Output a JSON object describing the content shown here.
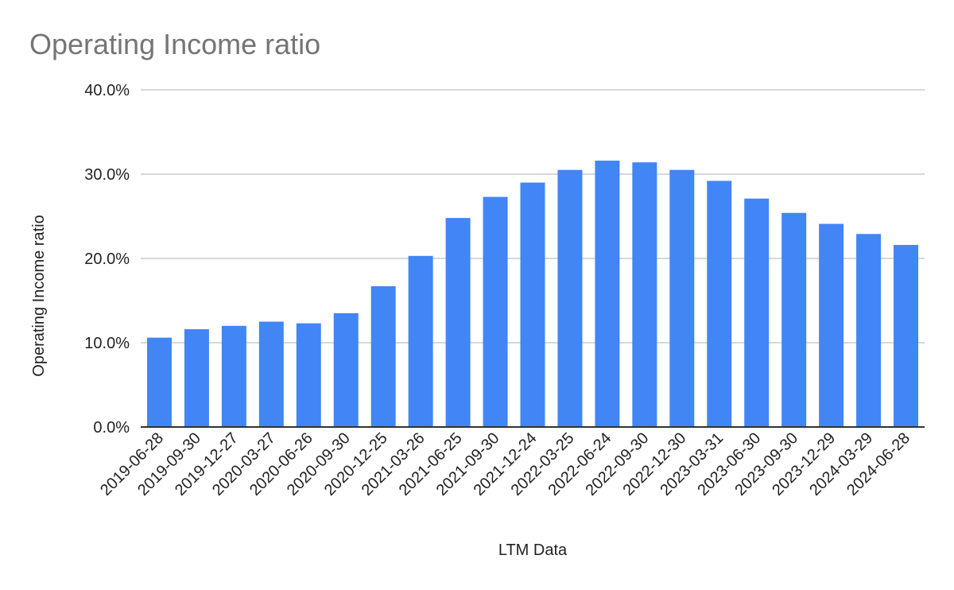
{
  "chart_data": {
    "type": "bar",
    "title": "Operating Income ratio",
    "xlabel": "LTM Data",
    "ylabel": "Operating Income ratio",
    "categories": [
      "2019-06-28",
      "2019-09-30",
      "2019-12-27",
      "2020-03-27",
      "2020-06-26",
      "2020-09-30",
      "2020-12-25",
      "2021-03-26",
      "2021-06-25",
      "2021-09-30",
      "2021-12-24",
      "2022-03-25",
      "2022-06-24",
      "2022-09-30",
      "2022-12-30",
      "2023-03-31",
      "2023-06-30",
      "2023-09-30",
      "2023-12-29",
      "2024-03-29",
      "2024-06-28"
    ],
    "values": [
      10.6,
      11.6,
      12.0,
      12.5,
      12.3,
      13.5,
      16.7,
      20.3,
      24.8,
      27.3,
      29.0,
      30.5,
      31.6,
      31.4,
      30.5,
      29.2,
      27.1,
      25.4,
      24.1,
      22.9,
      21.6
    ],
    "yticks": [
      "0.0%",
      "10.0%",
      "20.0%",
      "30.0%",
      "40.0%"
    ],
    "ylim": [
      0,
      40
    ],
    "unit": "%",
    "grid": true,
    "bar_color": "#4285f4"
  }
}
